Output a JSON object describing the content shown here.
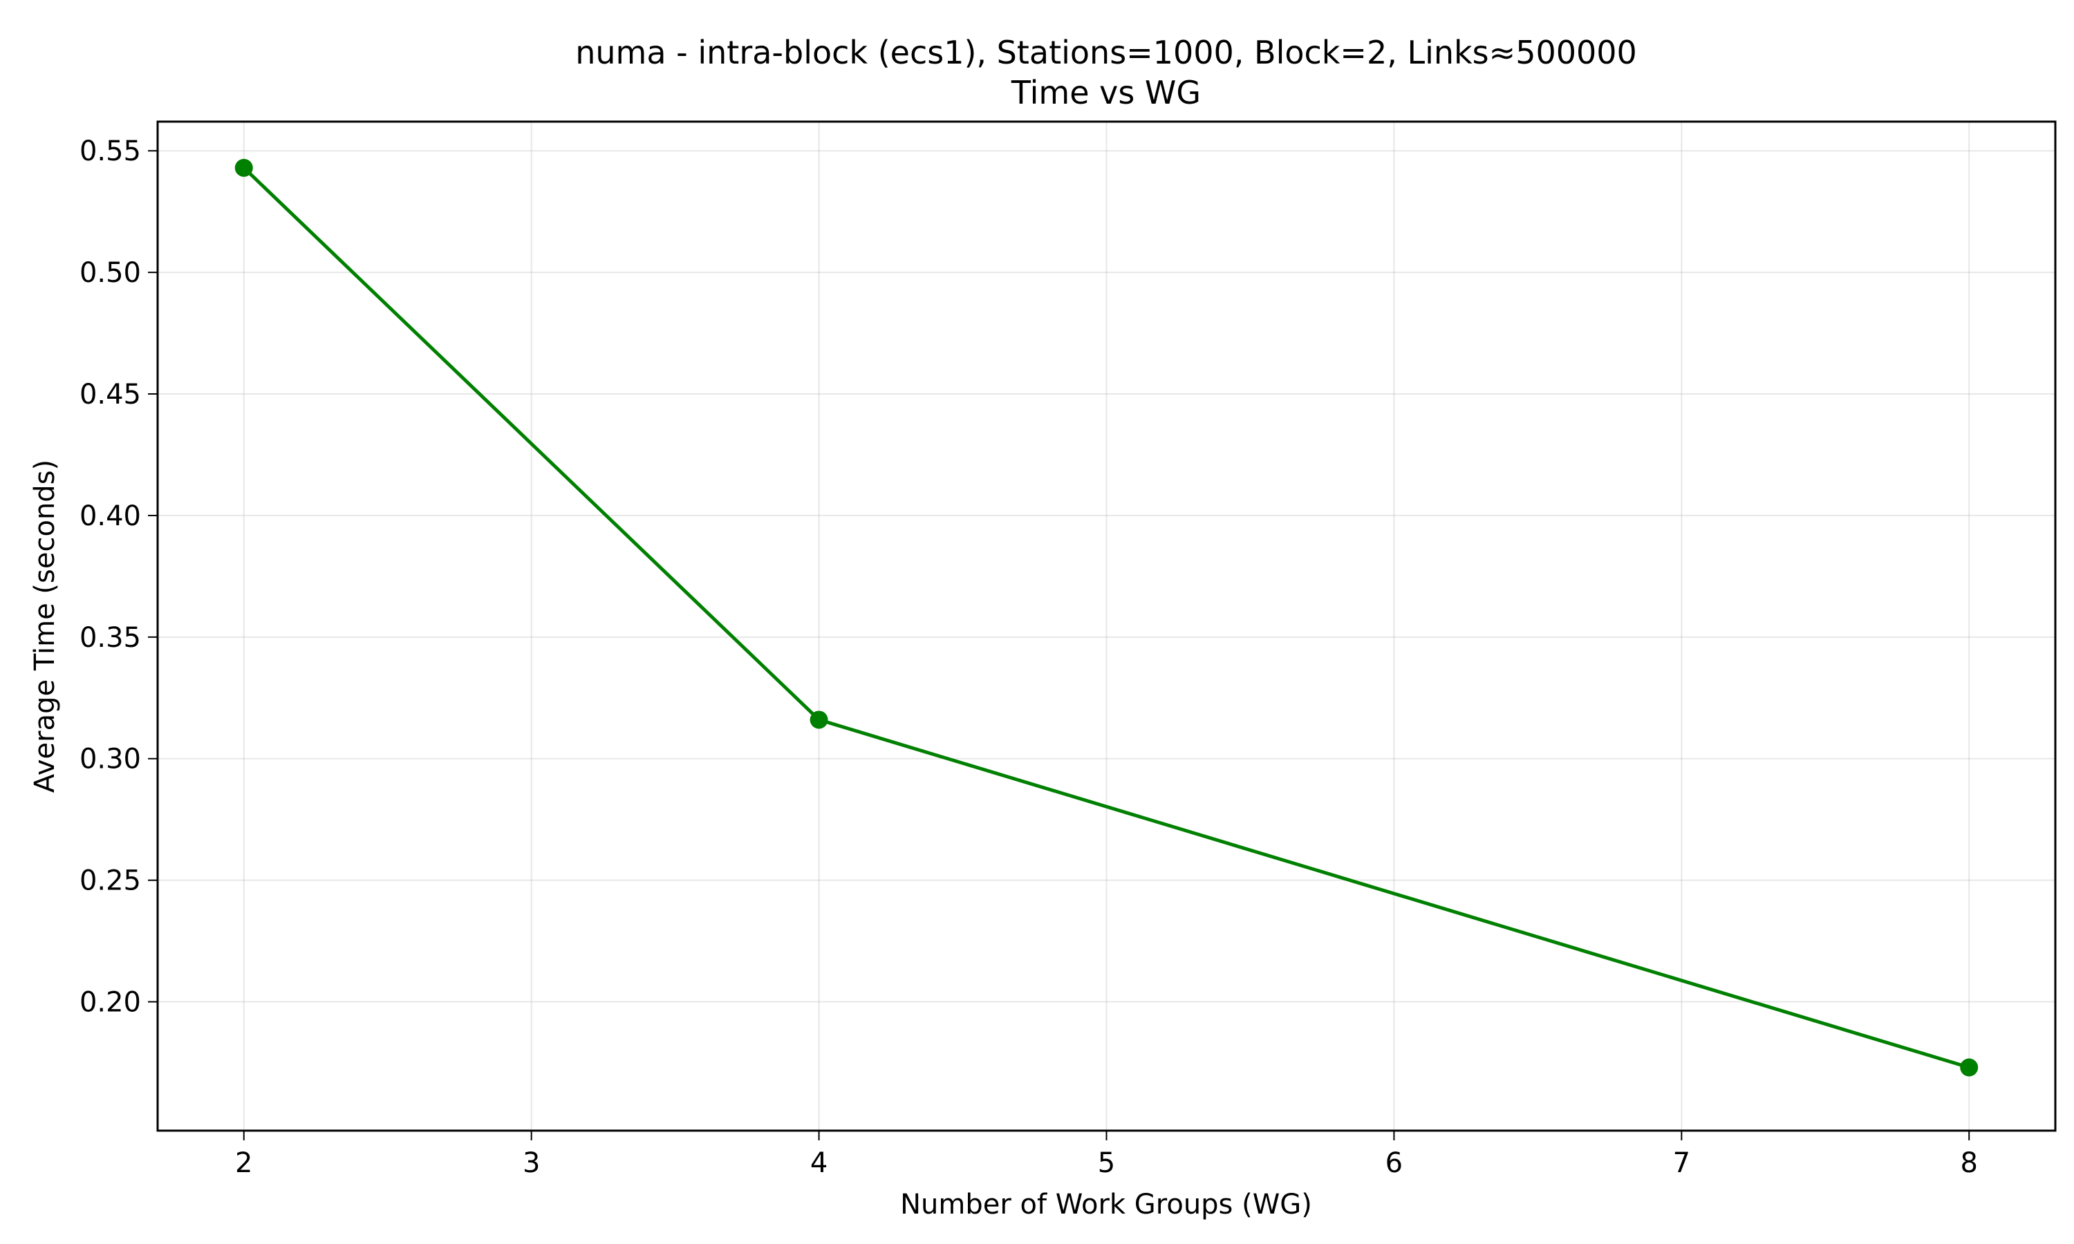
{
  "chart_data": {
    "type": "line",
    "title": "numa - intra-block (ecs1), Stations=1000, Block=2, Links≈500000",
    "subtitle": "Time vs WG",
    "xlabel": "Number of Work Groups (WG)",
    "ylabel": "Average Time (seconds)",
    "xlim": [
      1.7,
      8.3
    ],
    "ylim": [
      0.147,
      0.562
    ],
    "xticks": [
      2,
      3,
      4,
      5,
      6,
      7,
      8
    ],
    "xtick_labels": [
      "2",
      "3",
      "4",
      "5",
      "6",
      "7",
      "8"
    ],
    "yticks": [
      0.2,
      0.25,
      0.3,
      0.35,
      0.4,
      0.45,
      0.5,
      0.55
    ],
    "ytick_labels": [
      "0.20",
      "0.25",
      "0.30",
      "0.35",
      "0.40",
      "0.45",
      "0.50",
      "0.55"
    ],
    "grid": true,
    "series": [
      {
        "color": "#008000",
        "marker": "circle",
        "x": [
          2,
          4,
          8
        ],
        "y": [
          0.543,
          0.316,
          0.173
        ]
      }
    ]
  }
}
